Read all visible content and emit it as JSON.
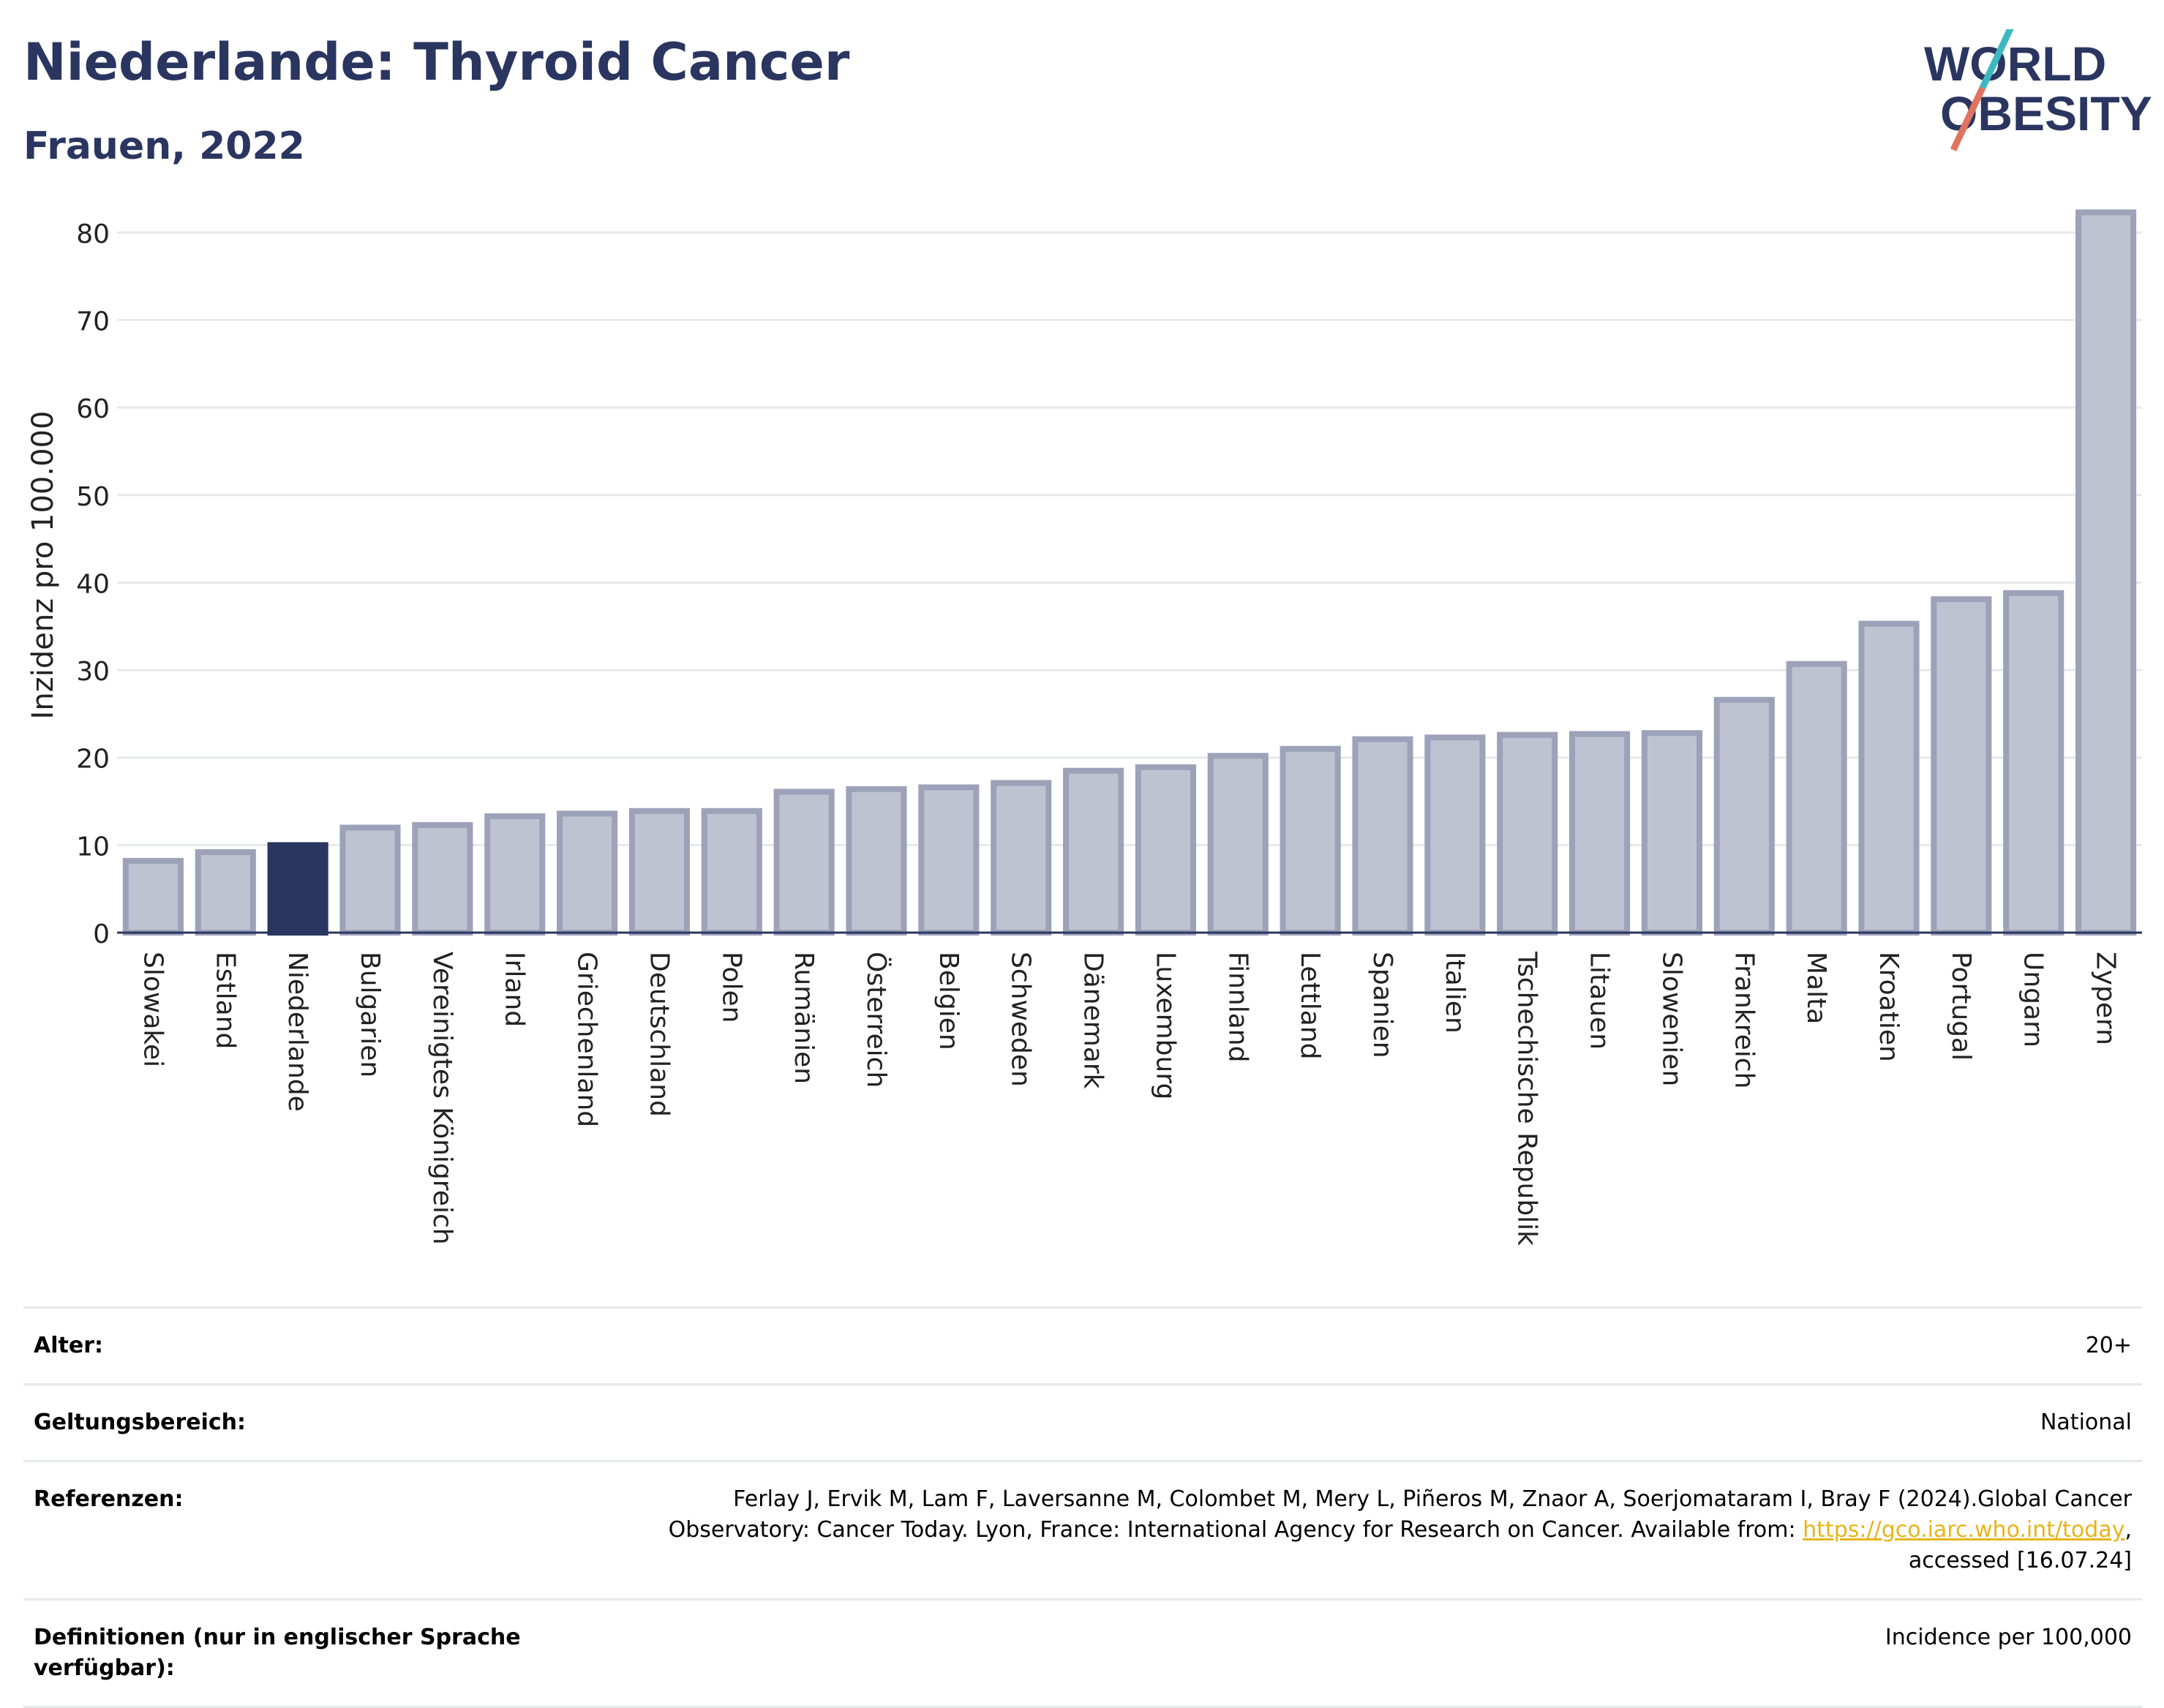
{
  "header": {
    "title": "Niederlande: Thyroid Cancer",
    "subtitle": "Frauen, 2022",
    "logo_line1": "WORLD",
    "logo_line2": "OBESITY"
  },
  "colors": {
    "bar": "#bfc2d0",
    "bar_stroke": "#9da2b9",
    "highlight": "#2a3560",
    "title": "#2a3560",
    "link": "#e8b41a",
    "logo_teal": "#3cb9c0",
    "logo_red": "#e0735f"
  },
  "chart_data": {
    "type": "bar",
    "ylabel": "Inzidenz pro 100.000",
    "ylim": [
      0,
      84
    ],
    "yticks": [
      0,
      10,
      20,
      30,
      40,
      50,
      60,
      70,
      80
    ],
    "grid": true,
    "highlight": "Niederlande",
    "categories": [
      "Slowakei",
      "Estland",
      "Niederlande",
      "Bulgarien",
      "Vereinigtes Königreich",
      "Irland",
      "Griechenland",
      "Deutschland",
      "Polen",
      "Rumänien",
      "Österreich",
      "Belgien",
      "Schweden",
      "Dänemark",
      "Luxemburg",
      "Finnland",
      "Lettland",
      "Spanien",
      "Italien",
      "Tschechische Republik",
      "Litauen",
      "Slowenien",
      "Frankreich",
      "Malta",
      "Kroatien",
      "Portugal",
      "Ungarn",
      "Zypern"
    ],
    "values": [
      8.2,
      9.2,
      10.0,
      12.0,
      12.3,
      13.3,
      13.6,
      13.9,
      13.9,
      16.1,
      16.4,
      16.6,
      17.1,
      18.5,
      18.9,
      20.2,
      21.0,
      22.1,
      22.3,
      22.6,
      22.7,
      22.8,
      26.6,
      30.7,
      35.3,
      38.1,
      38.8,
      82.3
    ]
  },
  "meta": {
    "age_label": "Alter:",
    "age_value": "20+",
    "scope_label": "Geltungsbereich:",
    "scope_value": "National",
    "ref_label": "Referenzen:",
    "ref_text_1": "Ferlay J, Ervik M, Lam F, Laversanne M, Colombet M, Mery L, Piñeros M, Znaor A, Soerjomataram I, Bray F (2024).Global Cancer",
    "ref_text_2": "Observatory: Cancer Today. Lyon, France: International Agency for Research on Cancer. Available from: ",
    "ref_link": "https://gco.iarc.who.int/today",
    "ref_text_3": ",",
    "ref_text_4": "accessed [16.07.24]",
    "def_label": "Definitionen (nur in englischer Sprache verfügbar):",
    "def_value": "Incidence per 100,000"
  }
}
